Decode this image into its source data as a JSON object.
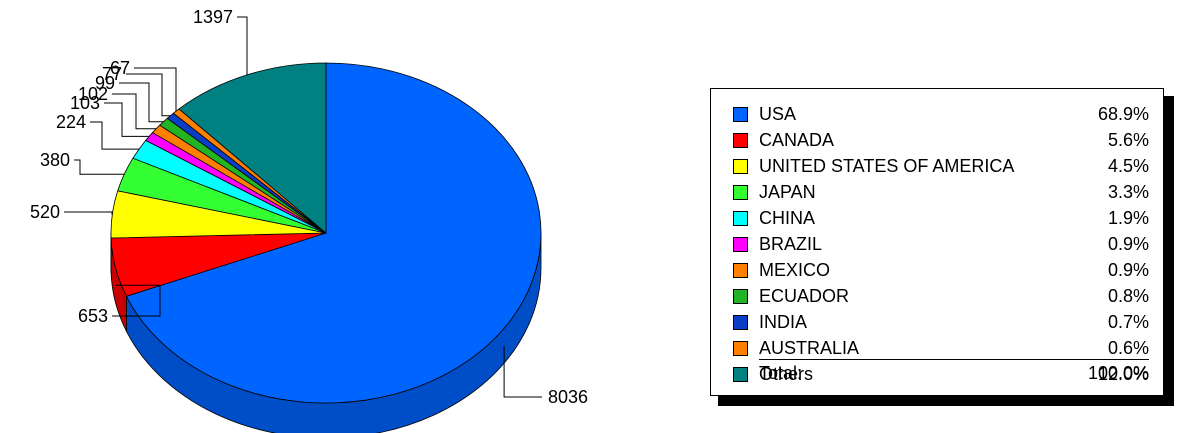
{
  "chart_data": {
    "type": "pie",
    "title": "",
    "categories": [
      "USA",
      "CANADA",
      "UNITED STATES OF AMERICA",
      "JAPAN",
      "CHINA",
      "BRAZIL",
      "MEXICO",
      "ECUADOR",
      "INDIA",
      "AUSTRALIA",
      "Others"
    ],
    "values": [
      8036,
      653,
      520,
      380,
      224,
      103,
      102,
      99,
      77,
      67,
      1397
    ],
    "percentages": [
      "68.9%",
      "5.6%",
      "4.5%",
      "3.3%",
      "1.9%",
      "0.9%",
      "0.9%",
      "0.8%",
      "0.7%",
      "0.6%",
      "12.0%"
    ],
    "colors": [
      "#0064ff",
      "#ff0000",
      "#ffff00",
      "#33ff33",
      "#00ffff",
      "#ff00ff",
      "#ff7f00",
      "#22b422",
      "#0b3ec8",
      "#ff7f00",
      "#008080"
    ],
    "legend": {
      "position": "right",
      "total_label": "Total:",
      "total_value": "100.0%"
    }
  }
}
